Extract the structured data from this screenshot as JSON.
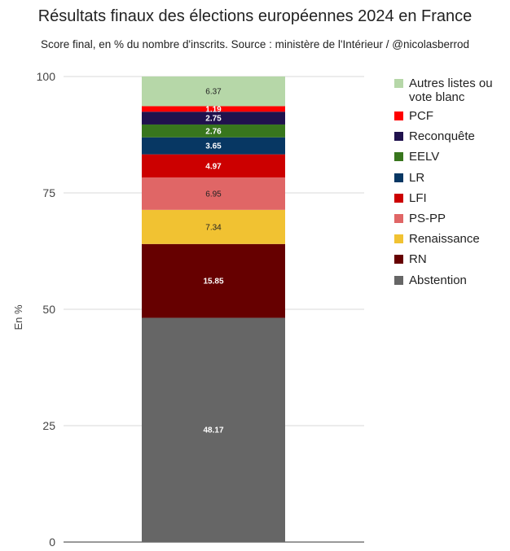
{
  "chart_data": {
    "type": "bar",
    "stacked": true,
    "title": "Résultats finaux des élections européennes 2024 en France",
    "subtitle": "Score final, en % du nombre d'inscrits. Source : ministère de l'Intérieur / @nicolasberrod",
    "ylabel": "En %",
    "xlabel": "",
    "ylim": [
      0,
      100
    ],
    "yticks": [
      0,
      25,
      50,
      75,
      100
    ],
    "legend_position": "right",
    "series": [
      {
        "name": "Abstention",
        "value": 48.17,
        "label": "48.17",
        "color": "#666666",
        "label_color": "#ffffff"
      },
      {
        "name": "RN",
        "value": 15.85,
        "label": "15.85",
        "color": "#660000",
        "label_color": "#ffffff"
      },
      {
        "name": "Renaissance",
        "value": 7.34,
        "label": "7.34",
        "color": "#f1c232",
        "label_color": "#222222"
      },
      {
        "name": "PS-PP",
        "value": 6.95,
        "label": "6.95",
        "color": "#e06666",
        "label_color": "#222222"
      },
      {
        "name": "LFI",
        "value": 4.97,
        "label": "4.97",
        "color": "#cc0000",
        "label_color": "#ffffff"
      },
      {
        "name": "LR",
        "value": 3.65,
        "label": "3.65",
        "color": "#073763",
        "label_color": "#ffffff"
      },
      {
        "name": "EELV",
        "value": 2.76,
        "label": "2.76",
        "color": "#38761d",
        "label_color": "#ffffff"
      },
      {
        "name": "Reconquête",
        "value": 2.75,
        "label": "2.75",
        "color": "#20124d",
        "label_color": "#ffffff"
      },
      {
        "name": "PCF",
        "value": 1.19,
        "label": "1.19",
        "color": "#ff0000",
        "label_color": "#ffffff"
      },
      {
        "name": "Autres listes ou vote blanc",
        "value": 6.37,
        "label": "6.37",
        "color": "#b6d7a8",
        "label_color": "#222222"
      }
    ]
  }
}
